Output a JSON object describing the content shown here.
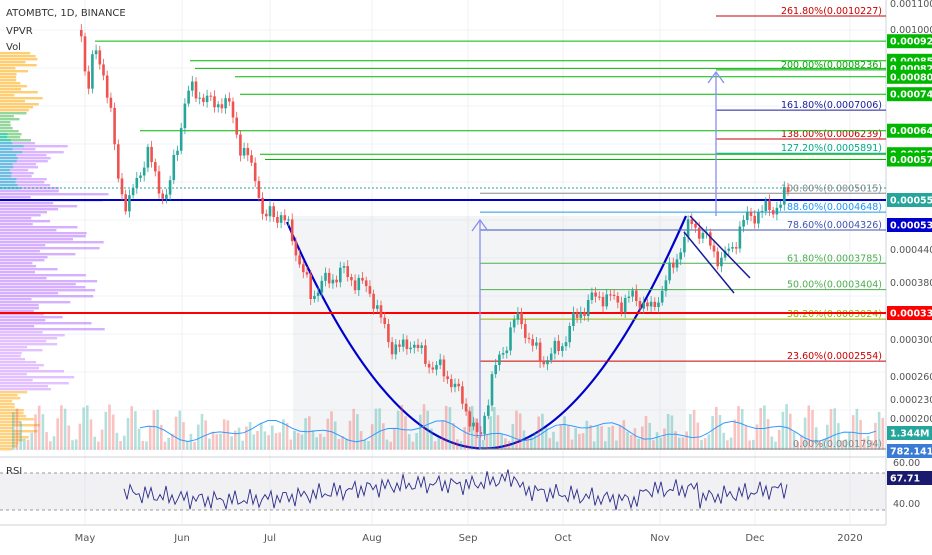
{
  "header": {
    "symbol": "ATOMBTC, 1D, BINANCE",
    "vpvr": "VPVR",
    "vol": "Vol",
    "rsi": "RSI"
  },
  "colors": {
    "up": "#26a69a",
    "down": "#ef5350",
    "blue": "#0000cc",
    "red": "#ff0000",
    "green": "#00b800",
    "fib_red": "#cc0000"
  },
  "chart_data": {
    "type": "candlestick",
    "ylim": [
      0.0001794,
      0.0010227
    ],
    "x_tick_labels": [
      "May",
      "Jun",
      "Jul",
      "Aug",
      "Sep",
      "Oct",
      "Nov",
      "Dec",
      "2020"
    ],
    "y_tick_labels": [
      "0.0011000",
      "0.0010000",
      "0.0004400",
      "0.0003800",
      "0.0003000",
      "0.0002600",
      "0.0002300",
      "0.0002000"
    ],
    "fib_levels": [
      {
        "ratio": "261.80%",
        "value": "0.0010227"
      },
      {
        "ratio": "200.00%",
        "value": "0.0008236"
      },
      {
        "ratio": "161.80%",
        "value": "0.0007006"
      },
      {
        "ratio": "138.00%",
        "value": "0.0006239"
      },
      {
        "ratio": "127.20%",
        "value": "0.0005891"
      },
      {
        "ratio": "100.00%",
        "value": "0.0005015"
      },
      {
        "ratio": "88.60%",
        "value": "0.0004648"
      },
      {
        "ratio": "78.60%",
        "value": "0.0004326"
      },
      {
        "ratio": "61.80%",
        "value": "0.0003785"
      },
      {
        "ratio": "50.00%",
        "value": "0.0003404"
      },
      {
        "ratio": "38.20%",
        "value": "0.0003024"
      },
      {
        "ratio": "23.60%",
        "value": "0.0002554"
      },
      {
        "ratio": "0.00%",
        "value": "0.0001794"
      }
    ],
    "resistance_levels": [
      "0.0009243",
      "0.0008542",
      "0.0008284",
      "0.0008010",
      "0.0007468",
      "0.0006449",
      "0.0005868",
      "0.0005745"
    ],
    "price_tags": {
      "current": "0.0005571",
      "blue_line": "0.0005321",
      "red_line": "0.0003373"
    },
    "volume": {
      "label_1": "1.344M",
      "label_2": "782.141K"
    },
    "rsi": {
      "value": "67.71",
      "upper": "60.00",
      "lower": "40.00"
    },
    "pattern": "cup and handle"
  }
}
